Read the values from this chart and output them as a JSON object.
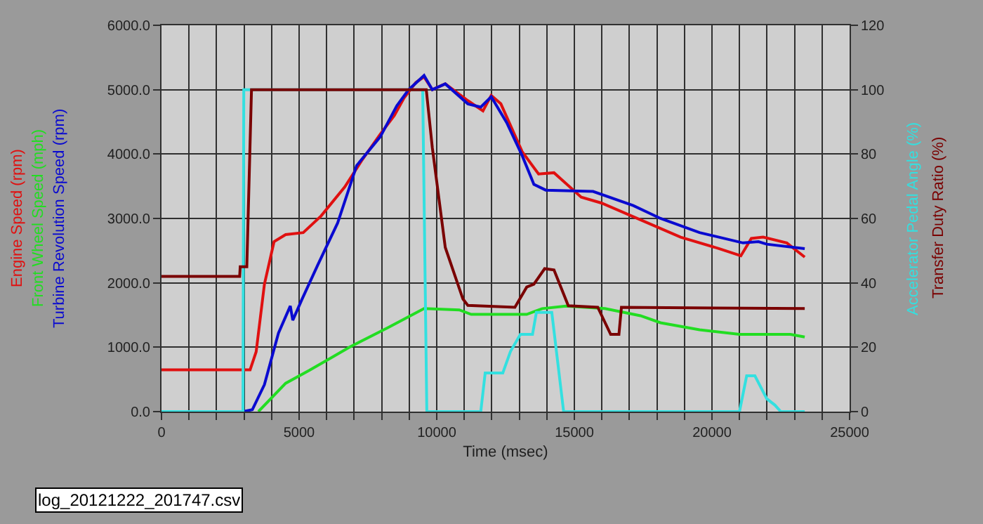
{
  "chart_data": {
    "type": "line",
    "xlabel": "Time (msec)",
    "annotations": [
      "log_20121222_201747.csv"
    ],
    "xlim": [
      0,
      25000
    ],
    "xticks": [
      0,
      {
        "value": 1000,
        "label": null
      },
      {
        "value": 2000,
        "label": null
      },
      {
        "value": 3000,
        "label": null
      },
      {
        "value": 4000,
        "label": null
      },
      5000,
      {
        "value": 6000,
        "label": null
      },
      {
        "value": 7000,
        "label": null
      },
      {
        "value": 8000,
        "label": null
      },
      {
        "value": 9000,
        "label": null
      },
      10000,
      {
        "value": 11000,
        "label": null
      },
      {
        "value": 12000,
        "label": null
      },
      {
        "value": 13000,
        "label": null
      },
      {
        "value": 14000,
        "label": null
      },
      15000,
      {
        "value": 16000,
        "label": null
      },
      {
        "value": 17000,
        "label": null
      },
      {
        "value": 18000,
        "label": null
      },
      {
        "value": 19000,
        "label": null
      },
      20000,
      {
        "value": 21000,
        "label": null
      },
      {
        "value": 22000,
        "label": null
      },
      {
        "value": 23000,
        "label": null
      },
      {
        "value": 24000,
        "label": null
      },
      25000
    ],
    "ylim": [
      0,
      6000
    ],
    "yticks": [
      {
        "value": 0,
        "label": "0.0"
      },
      {
        "value": 1000,
        "label": "1000.0"
      },
      {
        "value": 2000,
        "label": "2000.0"
      },
      {
        "value": 3000,
        "label": "3000.0"
      },
      {
        "value": 4000,
        "label": "4000.0"
      },
      {
        "value": 5000,
        "label": "5000.0"
      },
      {
        "value": 6000,
        "label": "6000.0"
      }
    ],
    "y2lim": [
      0,
      120
    ],
    "y2ticks": [
      0,
      20,
      40,
      60,
      80,
      100,
      120
    ],
    "grid": true,
    "legend": false,
    "marker": "none",
    "line_style": "solid",
    "series": [
      {
        "name": "Engine Speed (rpm)",
        "color": "#e01010",
        "x": [
          0,
          3220,
          3440,
          3740,
          4090,
          4510,
          5150,
          5800,
          6660,
          7260,
          7950,
          8460,
          8810,
          9240,
          9540,
          9840,
          10310,
          11130,
          11680,
          11980,
          12330,
          13100,
          13700,
          14260,
          15250,
          15980,
          17400,
          18860,
          20270,
          21050,
          21430,
          21860,
          22720,
          23370
        ],
        "values": [
          650,
          650,
          930,
          1980,
          2640,
          2750,
          2780,
          3040,
          3490,
          3890,
          4310,
          4600,
          4870,
          5110,
          5200,
          5000,
          5090,
          4830,
          4670,
          4910,
          4780,
          4040,
          3690,
          3710,
          3330,
          3240,
          2980,
          2710,
          2530,
          2420,
          2690,
          2710,
          2620,
          2400
        ]
      },
      {
        "name": "Front Wheel Speed (mph)",
        "color": "#22dd22",
        "x": [
          3520,
          4510,
          5370,
          6830,
          8250,
          9540,
          10820,
          11250,
          13270,
          13830,
          14690,
          16110,
          17400,
          18130,
          19550,
          21000,
          22850,
          23370
        ],
        "values": [
          0,
          440,
          640,
          1000,
          1310,
          1600,
          1580,
          1510,
          1510,
          1600,
          1640,
          1600,
          1490,
          1380,
          1270,
          1200,
          1200,
          1160
        ]
      },
      {
        "name": "Turbine Revolution Speed (rpm)",
        "color": "#0a0ad0",
        "x": [
          2960,
          3300,
          3740,
          4250,
          4680,
          4770,
          5110,
          5670,
          6400,
          7090,
          7950,
          8550,
          8980,
          9540,
          9840,
          10310,
          11130,
          11600,
          11980,
          12540,
          13100,
          13530,
          13960,
          15680,
          17140,
          18130,
          19550,
          21130,
          21690,
          21990,
          23370
        ],
        "values": [
          0,
          30,
          420,
          1220,
          1640,
          1420,
          1750,
          2270,
          2930,
          3820,
          4270,
          4750,
          5000,
          5220,
          5000,
          5090,
          4780,
          4730,
          4890,
          4490,
          3980,
          3530,
          3440,
          3420,
          3200,
          3000,
          2780,
          2620,
          2640,
          2600,
          2530
        ]
      },
      {
        "name": "Accelerator Pedal Angle (%)",
        "color": "#33e0e0",
        "axis": "y2",
        "x": [
          0,
          2960,
          2990,
          9490,
          9640,
          11600,
          11760,
          12400,
          12680,
          13040,
          13480,
          13620,
          14180,
          14610,
          21000,
          21260,
          21560,
          21990,
          22290,
          22500,
          23370
        ],
        "values": [
          0,
          0,
          100,
          100,
          0,
          0,
          12,
          12,
          18.7,
          24,
          24,
          30.8,
          30.8,
          0,
          0,
          11.1,
          11.1,
          4,
          2,
          0,
          0
        ]
      },
      {
        "name": "Transfer Duty Ratio (%)",
        "color": "#7a0000",
        "axis": "y2",
        "x": [
          0,
          2840,
          2860,
          3100,
          3270,
          9620,
          9840,
          10310,
          10950,
          11130,
          12840,
          13270,
          13530,
          13920,
          14260,
          14780,
          15850,
          16320,
          16620,
          16710,
          23370
        ],
        "values": [
          42,
          42,
          45,
          45,
          100,
          100,
          82,
          51,
          35,
          33,
          32.4,
          38.7,
          39.6,
          44.4,
          44,
          32.9,
          32.4,
          24,
          24,
          32.4,
          32
        ]
      }
    ]
  }
}
